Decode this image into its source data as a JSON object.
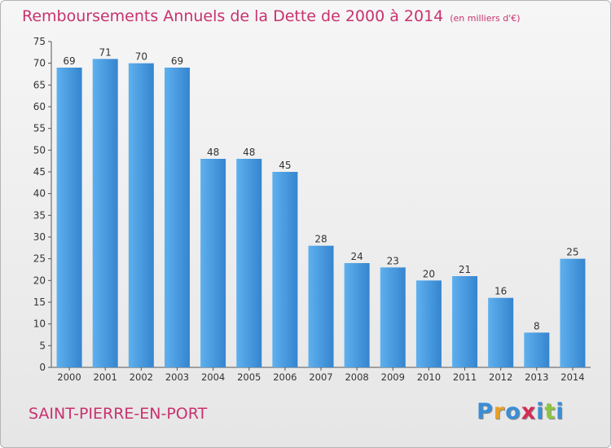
{
  "title": "Remboursements Annuels de la Dette de 2000 à 2014",
  "unit": "(en milliers d'€)",
  "commune": "SAINT-PIERRE-EN-PORT",
  "logo": {
    "letters": [
      "P",
      "r",
      "o",
      "x",
      "i",
      "t",
      "i"
    ],
    "colors": [
      "#3b8ed6",
      "#e8a024",
      "#3b8ed6",
      "#d62c56",
      "#3b8ed6",
      "#8cc63f",
      "#3b8ed6"
    ]
  },
  "colors": {
    "accent": "#c8326e",
    "bar": "#3585cf",
    "bar_light": "#5eb0ee"
  },
  "chart_data": {
    "type": "bar",
    "categories": [
      "2000",
      "2001",
      "2002",
      "2003",
      "2004",
      "2005",
      "2006",
      "2007",
      "2008",
      "2009",
      "2010",
      "2011",
      "2012",
      "2013",
      "2014"
    ],
    "values": [
      69,
      71,
      70,
      69,
      48,
      48,
      45,
      28,
      24,
      23,
      20,
      21,
      16,
      8,
      25
    ],
    "ylim": [
      0,
      75
    ],
    "yticks": [
      0,
      5,
      10,
      15,
      20,
      25,
      30,
      35,
      40,
      45,
      50,
      55,
      60,
      65,
      70,
      75
    ],
    "grid": false,
    "legend": "none"
  }
}
